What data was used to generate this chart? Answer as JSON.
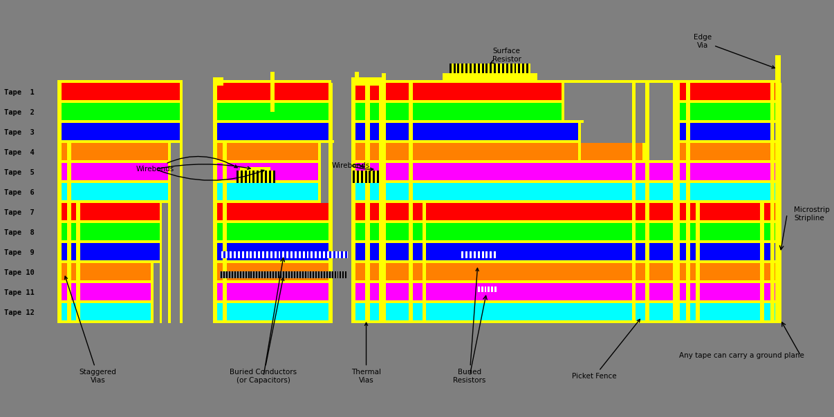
{
  "bg_color": "#7f7f7f",
  "tape_labels": [
    "Tape  1",
    "Tape  2",
    "Tape  3",
    "Tape  4",
    "Tape  5",
    "Tape  6",
    "Tape  7",
    "Tape  8",
    "Tape  9",
    "Tape 10",
    "Tape 11",
    "Tape 12"
  ],
  "colors": {
    "R": "#FF0000",
    "G": "#00FF00",
    "B": "#0000FF",
    "O": "#FF8000",
    "M": "#FF00FF",
    "CY": "#00FFFF",
    "Y": "#FFFF00",
    "BK": "#000000",
    "WH": "#FFFFFF",
    "GR": "#7f7f7f"
  },
  "fig_width": 12.06,
  "fig_height": 6.04,
  "dpi": 100
}
